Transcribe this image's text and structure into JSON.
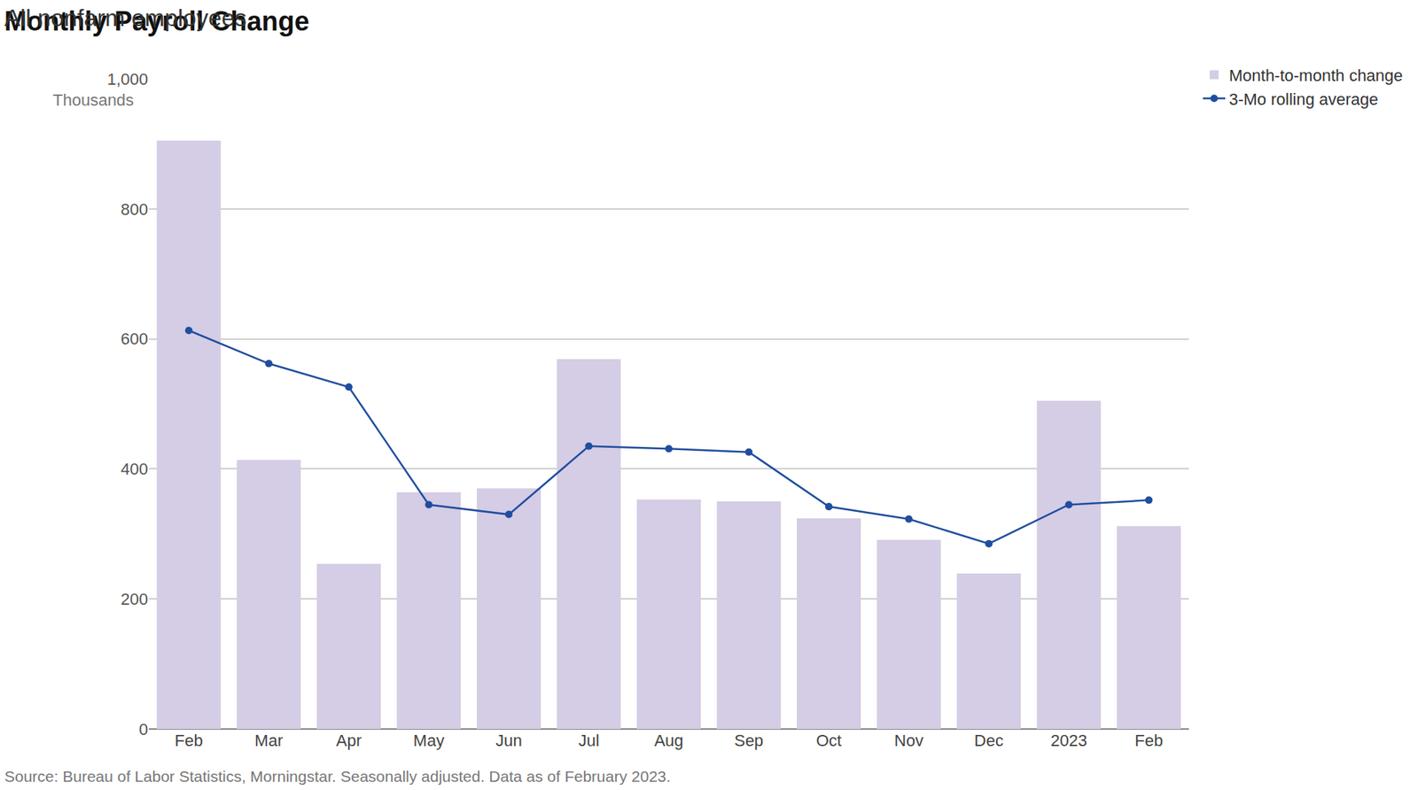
{
  "chart_data": {
    "type": "bar",
    "title": "Monthly Payroll Change",
    "subtitle": "All nonfarm employees",
    "y_label": "Thousands",
    "note": "Source: Bureau of Labor Statistics, Morningstar. Seasonally adjusted. Data as of February 2023.",
    "categories": [
      "Feb",
      "Mar",
      "Apr",
      "May",
      "Jun",
      "Jul",
      "Aug",
      "Sep",
      "Oct",
      "Nov",
      "Dec",
      "2023",
      "Feb"
    ],
    "series": [
      {
        "name": "Month-to-month change",
        "type": "bar",
        "color": "#d5cce5",
        "values": [
          905,
          414,
          254,
          364,
          370,
          569,
          353,
          350,
          324,
          291,
          239,
          505,
          312
        ]
      },
      {
        "name": "3-Mo rolling average",
        "type": "line",
        "color": "#1f4e9f",
        "marker": "circle",
        "values": [
          613,
          562,
          526,
          345,
          330,
          435,
          431,
          426,
          342,
          323,
          285,
          345,
          352
        ]
      }
    ],
    "ylim": [
      0,
      1000
    ],
    "yticks": [
      0,
      200,
      400,
      600,
      800,
      {
        "value": 1000,
        "label": "1,000"
      }
    ],
    "grid": true,
    "legend": "upper right"
  }
}
